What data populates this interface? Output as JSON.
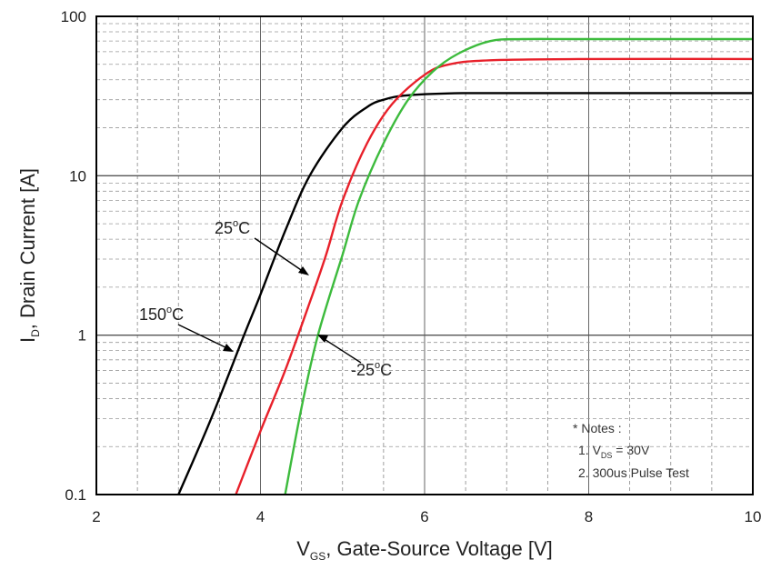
{
  "chart_data": {
    "type": "line",
    "title": "",
    "xlabel": {
      "prefix": "V",
      "sub": "GS",
      "rest": ", Gate-Source Voltage [V]"
    },
    "ylabel": {
      "prefix": "I",
      "sub": "D",
      "rest": ", Drain Current [A]"
    },
    "xlim": [
      2,
      10
    ],
    "ylim": [
      0.1,
      100
    ],
    "yscale": "log",
    "grid": true,
    "x_ticks": [
      "2",
      "4",
      "6",
      "8",
      "10"
    ],
    "y_ticks": [
      "0.1",
      "1",
      "10",
      "100"
    ],
    "series": [
      {
        "name": "150",
        "name_sup": "o",
        "name_unit": "C",
        "color": "#000000",
        "x": [
          3.0,
          3.4,
          3.8,
          4.0,
          4.3,
          4.6,
          5.0,
          5.3,
          5.5,
          5.8,
          6.5,
          8.0,
          10.0
        ],
        "y": [
          0.1,
          0.3,
          1.0,
          1.8,
          4.5,
          10.0,
          20.0,
          27.0,
          30.0,
          32.0,
          33.0,
          33.0,
          33.0
        ]
      },
      {
        "name": "25",
        "name_sup": "o",
        "name_unit": "C",
        "color": "#e8202a",
        "x": [
          3.7,
          4.0,
          4.3,
          4.6,
          4.8,
          5.0,
          5.3,
          5.6,
          6.0,
          6.3,
          6.8,
          8.0,
          10.0
        ],
        "y": [
          0.1,
          0.25,
          0.6,
          1.6,
          3.2,
          7.0,
          16.0,
          28.0,
          43.0,
          50.0,
          53.0,
          54.0,
          54.0
        ]
      },
      {
        "name": "-25",
        "name_sup": "o",
        "name_unit": "C",
        "color": "#3dbb3d",
        "x": [
          4.3,
          4.5,
          4.7,
          5.0,
          5.2,
          5.5,
          5.8,
          6.1,
          6.4,
          6.8,
          7.2,
          8.0,
          10.0
        ],
        "y": [
          0.1,
          0.35,
          1.0,
          3.2,
          7.0,
          16.0,
          30.0,
          45.0,
          58.0,
          70.0,
          72.0,
          72.0,
          72.0
        ]
      }
    ],
    "notes": {
      "header": "* Notes :",
      "line1_prefix": "1. V",
      "line1_sub": "DS",
      "line1_rest": " = 30V",
      "line2": "2. 300us Pulse Test"
    }
  }
}
